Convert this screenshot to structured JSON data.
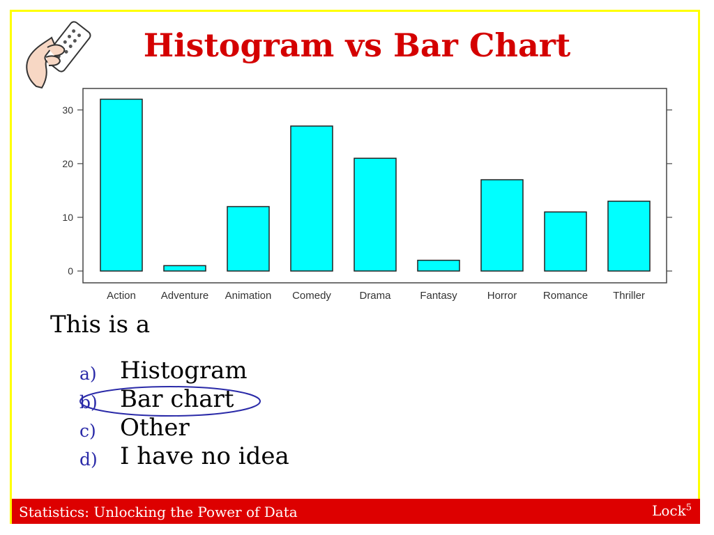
{
  "title": "Histogram vs Bar Chart",
  "question": "This is a",
  "options": [
    {
      "letter": "a)",
      "text": "Histogram"
    },
    {
      "letter": "b)",
      "text": "Bar chart"
    },
    {
      "letter": "c)",
      "text": "Other"
    },
    {
      "letter": "d)",
      "text": "I have no idea"
    }
  ],
  "selected_option": "b)",
  "footer": {
    "text": "Statistics: Unlocking the Power of Data",
    "brand": "Lock",
    "brand_sup": "5"
  },
  "colors": {
    "bar_fill": "#00ffff",
    "title": "#d40000",
    "footer_bg": "#dd0000",
    "frame": "#ffff00",
    "option_letter": "#2a2aa8"
  },
  "chart_data": {
    "type": "bar",
    "categories": [
      "Action",
      "Adventure",
      "Animation",
      "Comedy",
      "Drama",
      "Fantasy",
      "Horror",
      "Romance",
      "Thriller"
    ],
    "values": [
      32,
      1,
      12,
      27,
      21,
      2,
      17,
      11,
      13
    ],
    "yticks": [
      0,
      10,
      20,
      30
    ],
    "ylim": [
      -2.2,
      34
    ],
    "grid": false,
    "title": "",
    "xlabel": "",
    "ylabel": ""
  }
}
